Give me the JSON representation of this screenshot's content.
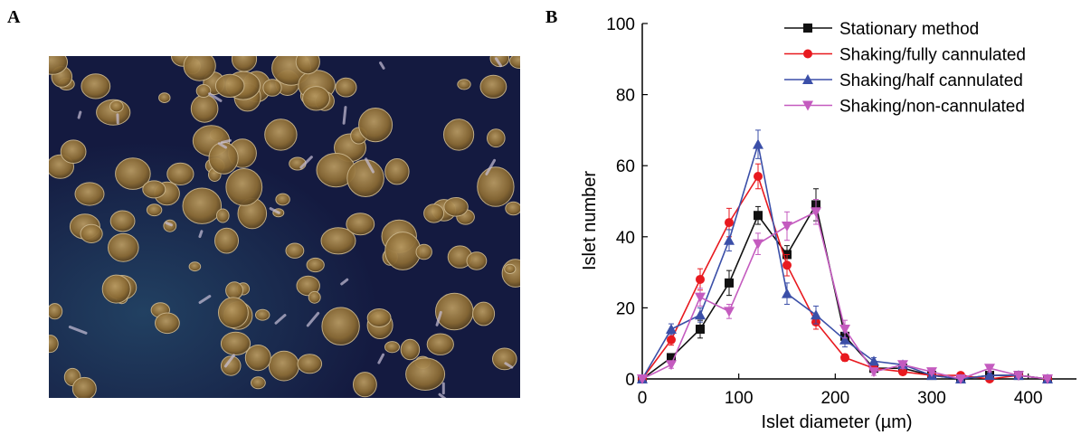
{
  "panels": {
    "a": "A",
    "b": "B"
  },
  "photo": {
    "background": "#141a40",
    "islet_color": "#8a6a34",
    "islet_edge": "#b89a62"
  },
  "chart_data": {
    "type": "line",
    "xlabel": "Islet diameter (µm)",
    "ylabel": "Islet number",
    "xlim": [
      0,
      450
    ],
    "ylim": [
      0,
      100
    ],
    "xticks": [
      0,
      100,
      200,
      300,
      400
    ],
    "yticks": [
      0,
      20,
      40,
      60,
      80,
      100
    ],
    "legend_position": "top-right",
    "grid": false,
    "series": [
      {
        "name": "Stationary method",
        "color": "#111111",
        "marker": "square",
        "x": [
          0,
          30,
          60,
          90,
          120,
          150,
          180,
          210,
          240,
          270,
          300,
          330,
          360,
          390,
          420
        ],
        "y": [
          0,
          6,
          14,
          27,
          46,
          35,
          49,
          12,
          3,
          3,
          1,
          0,
          1,
          1,
          0
        ],
        "err": [
          0,
          1,
          2.5,
          3.5,
          2.5,
          2.5,
          4.5,
          2,
          1,
          1,
          0.5,
          0,
          0.5,
          0.5,
          0
        ]
      },
      {
        "name": "Shaking/fully cannulated",
        "color": "#e8191f",
        "marker": "circle",
        "x": [
          0,
          30,
          60,
          90,
          120,
          150,
          180,
          210,
          240,
          270,
          300,
          330,
          360,
          390,
          420
        ],
        "y": [
          0,
          11,
          28,
          44,
          57,
          32,
          16,
          6,
          3,
          2,
          1,
          1,
          0,
          1,
          0
        ],
        "err": [
          0,
          1.5,
          3,
          4,
          3.5,
          3,
          2,
          1,
          0.5,
          0.5,
          0.5,
          0.5,
          0,
          0.5,
          0
        ]
      },
      {
        "name": "Shaking/half cannulated",
        "color": "#3b4fa8",
        "marker": "triangle-up",
        "x": [
          0,
          30,
          60,
          90,
          120,
          150,
          180,
          210,
          240,
          270,
          300,
          330,
          360,
          390,
          420
        ],
        "y": [
          0,
          14,
          18,
          39,
          66,
          24,
          18,
          11,
          5,
          4,
          1,
          0,
          1,
          1,
          0
        ],
        "err": [
          0,
          1.5,
          2,
          3,
          4,
          3,
          2.5,
          2,
          1,
          1,
          0.5,
          0,
          0.5,
          0.5,
          0
        ]
      },
      {
        "name": "Shaking/non-cannulated",
        "color": "#c45bbf",
        "marker": "triangle-down",
        "x": [
          0,
          30,
          60,
          90,
          120,
          150,
          180,
          210,
          240,
          270,
          300,
          330,
          360,
          390,
          420
        ],
        "y": [
          0,
          4,
          23,
          19,
          38,
          43,
          47,
          14,
          2,
          4,
          2,
          0,
          3,
          1,
          0
        ],
        "err": [
          0,
          1,
          2.5,
          2,
          3,
          4,
          3.5,
          2.5,
          1,
          1,
          0.5,
          0,
          1,
          0.5,
          0
        ]
      }
    ]
  }
}
